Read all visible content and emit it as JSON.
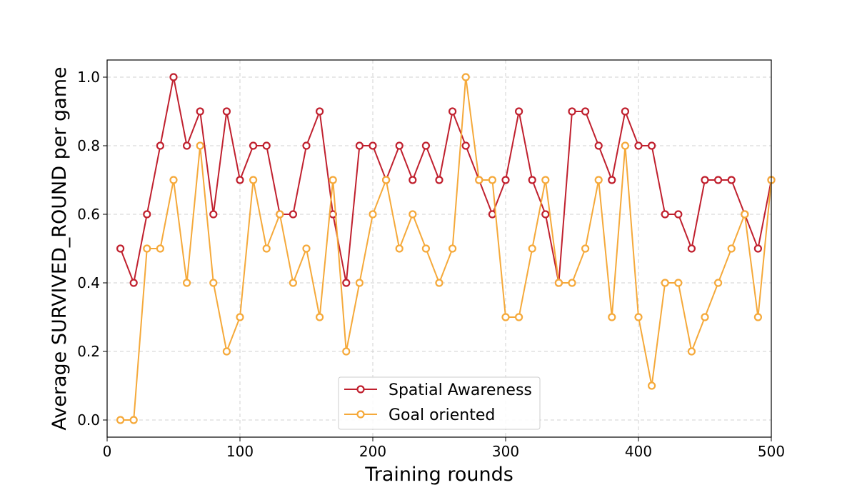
{
  "chart_data": {
    "type": "line",
    "title": "",
    "xlabel": "Training rounds",
    "ylabel": "Average SURVIVED_ROUND per game",
    "xlim": [
      0,
      500
    ],
    "ylim": [
      -0.05,
      1.05
    ],
    "xticks": [
      0,
      100,
      200,
      300,
      400,
      500
    ],
    "yticks": [
      0.0,
      0.2,
      0.4,
      0.6,
      0.8,
      1.0
    ],
    "xtick_labels": [
      "0",
      "100",
      "200",
      "300",
      "400",
      "500"
    ],
    "ytick_labels": [
      "0.0",
      "0.2",
      "0.4",
      "0.6",
      "0.8",
      "1.0"
    ],
    "grid": true,
    "legend_position": "bottom-center",
    "x": [
      10,
      20,
      30,
      40,
      50,
      60,
      70,
      80,
      90,
      100,
      110,
      120,
      130,
      140,
      150,
      160,
      170,
      180,
      190,
      200,
      210,
      220,
      230,
      240,
      250,
      260,
      270,
      280,
      290,
      300,
      310,
      320,
      330,
      340,
      350,
      360,
      370,
      380,
      390,
      400,
      410,
      420,
      430,
      440,
      450,
      460,
      470,
      480,
      490,
      500
    ],
    "series": [
      {
        "name": "Spatial Awareness",
        "color": "#c0202e",
        "marker": "open-circle",
        "values": [
          0.5,
          0.4,
          0.6,
          0.8,
          1.0,
          0.8,
          0.9,
          0.6,
          0.9,
          0.7,
          0.8,
          0.8,
          0.6,
          0.6,
          0.8,
          0.9,
          0.6,
          0.4,
          0.8,
          0.8,
          0.7,
          0.8,
          0.7,
          0.8,
          0.7,
          0.9,
          0.8,
          0.7,
          0.6,
          0.7,
          0.9,
          0.7,
          0.6,
          0.4,
          0.9,
          0.9,
          0.8,
          0.7,
          0.9,
          0.8,
          0.8,
          0.6,
          0.6,
          0.5,
          0.7,
          0.7,
          0.7,
          0.6,
          0.5,
          0.7
        ]
      },
      {
        "name": "Goal oriented",
        "color": "#f5a93a",
        "marker": "open-circle",
        "values": [
          0.0,
          0.0,
          0.5,
          0.5,
          0.7,
          0.4,
          0.8,
          0.4,
          0.2,
          0.3,
          0.7,
          0.5,
          0.6,
          0.4,
          0.5,
          0.3,
          0.7,
          0.2,
          0.4,
          0.6,
          0.7,
          0.5,
          0.6,
          0.5,
          0.4,
          0.5,
          1.0,
          0.7,
          0.7,
          0.3,
          0.3,
          0.5,
          0.7,
          0.4,
          0.4,
          0.5,
          0.7,
          0.3,
          0.8,
          0.3,
          0.1,
          0.4,
          0.4,
          0.2,
          0.3,
          0.4,
          0.5,
          0.6,
          0.3,
          0.7
        ]
      }
    ]
  }
}
